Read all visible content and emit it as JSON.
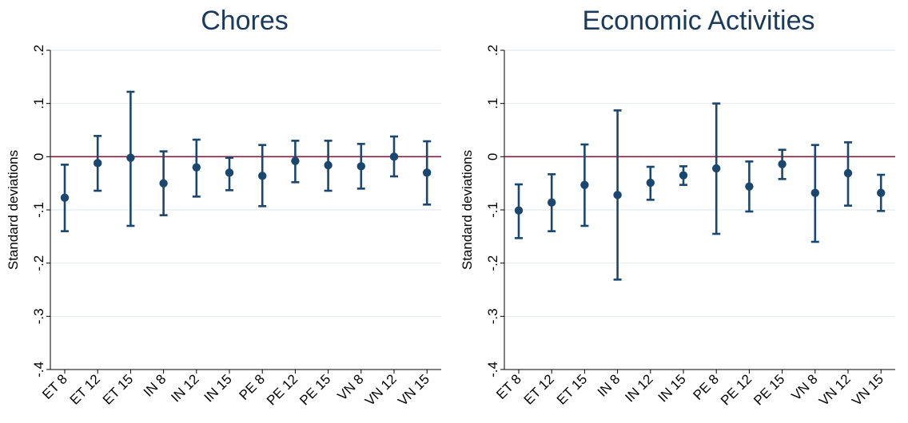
{
  "chart_data": [
    {
      "type": "errorbar",
      "title": "Chores",
      "ylabel": "Standard deviations",
      "ylim": [
        -0.4,
        0.2
      ],
      "yticks": [
        0.2,
        0.1,
        0,
        -0.1,
        -0.2,
        -0.3,
        -0.4
      ],
      "ytick_labels": [
        ".2",
        ".1",
        "0",
        "-.1",
        "-.2",
        "-.3",
        "-.4"
      ],
      "reference_line": 0,
      "categories": [
        "ET 8",
        "ET 12",
        "ET 15",
        "IN 8",
        "IN 12",
        "IN 15",
        "PE 8",
        "PE 12",
        "PE 15",
        "VN 8",
        "VN 12",
        "VN 15"
      ],
      "values": [
        -0.077,
        -0.012,
        -0.002,
        -0.05,
        -0.02,
        -0.03,
        -0.036,
        -0.008,
        -0.016,
        -0.018,
        0.0,
        -0.03
      ],
      "lower": [
        -0.14,
        -0.064,
        -0.13,
        -0.11,
        -0.075,
        -0.063,
        -0.093,
        -0.048,
        -0.064,
        -0.06,
        -0.037,
        -0.09
      ],
      "upper": [
        -0.015,
        0.039,
        0.122,
        0.01,
        0.032,
        -0.002,
        0.022,
        0.03,
        0.03,
        0.024,
        0.038,
        0.029
      ],
      "colors": {
        "marker": "#1a476f",
        "refline": "#8b1a3a",
        "grid": "#e8ecef",
        "title": "#1a3a5c"
      }
    },
    {
      "type": "errorbar",
      "title": "Economic Activities",
      "ylabel": "Standard deviations",
      "ylim": [
        -0.4,
        0.2
      ],
      "yticks": [
        0.2,
        0.1,
        0,
        -0.1,
        -0.2,
        -0.3,
        -0.4
      ],
      "ytick_labels": [
        ".2",
        ".1",
        "0",
        "-.1",
        "-.2",
        "-.3",
        "-.4"
      ],
      "reference_line": 0,
      "categories": [
        "ET 8",
        "ET 12",
        "ET 15",
        "IN 8",
        "IN 12",
        "IN 15",
        "PE 8",
        "PE 12",
        "PE 15",
        "VN 8",
        "VN 12",
        "VN 15"
      ],
      "values": [
        -0.101,
        -0.086,
        -0.053,
        -0.072,
        -0.049,
        -0.035,
        -0.022,
        -0.056,
        -0.014,
        -0.068,
        -0.031,
        -0.068
      ],
      "lower": [
        -0.153,
        -0.14,
        -0.13,
        -0.231,
        -0.081,
        -0.053,
        -0.145,
        -0.103,
        -0.042,
        -0.16,
        -0.092,
        -0.102
      ],
      "upper": [
        -0.052,
        -0.033,
        0.023,
        0.087,
        -0.019,
        -0.018,
        0.1,
        -0.009,
        0.013,
        0.022,
        0.027,
        -0.034
      ],
      "colors": {
        "marker": "#1a476f",
        "refline": "#8b1a3a",
        "grid": "#e8ecef",
        "title": "#1a3a5c"
      }
    }
  ]
}
